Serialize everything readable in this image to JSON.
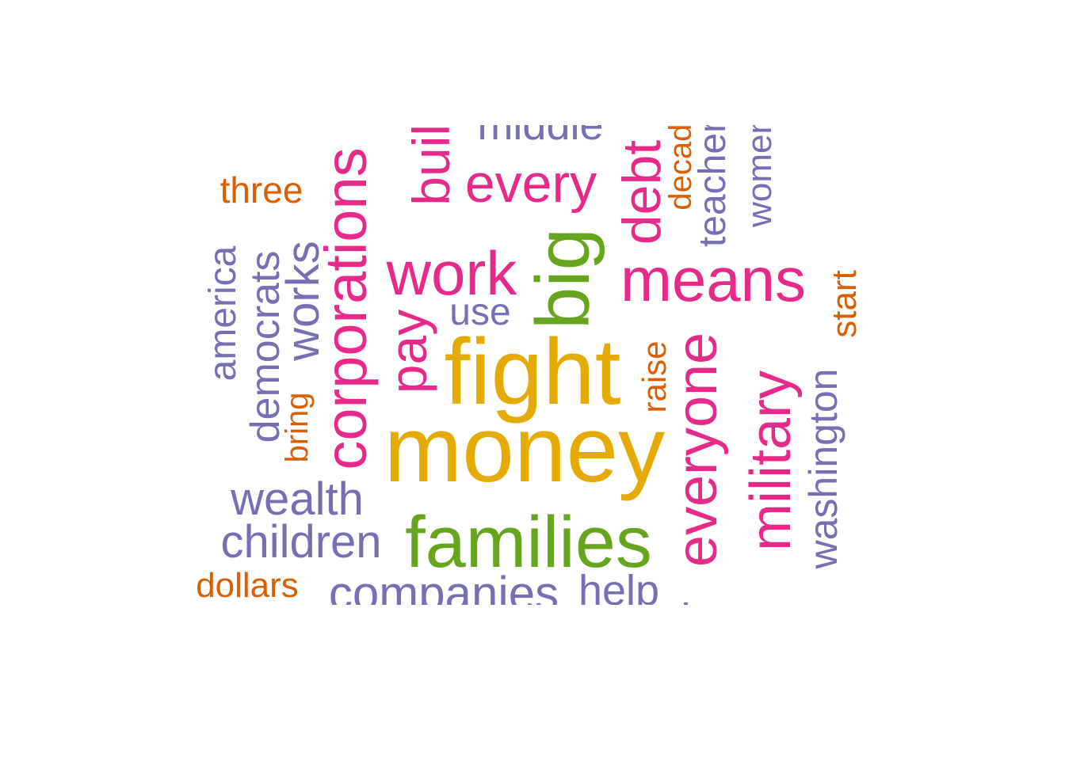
{
  "colors": {
    "pink": "#E7298A",
    "gold": "#E6AB02",
    "green": "#66A61E",
    "purple": "#7570B3",
    "orange": "#D95F02"
  },
  "words": [
    {
      "text": "fight",
      "color": "gold"
    },
    {
      "text": "money",
      "color": "gold"
    },
    {
      "text": "families",
      "color": "green"
    },
    {
      "text": "big",
      "color": "green"
    },
    {
      "text": "corporations",
      "color": "pink"
    },
    {
      "text": "work",
      "color": "pink"
    },
    {
      "text": "means",
      "color": "pink"
    },
    {
      "text": "everyone",
      "color": "pink"
    },
    {
      "text": "military",
      "color": "pink"
    },
    {
      "text": "every",
      "color": "pink"
    },
    {
      "text": "debt",
      "color": "pink"
    },
    {
      "text": "pay",
      "color": "pink"
    },
    {
      "text": "build",
      "color": "pink"
    },
    {
      "text": "companies",
      "color": "purple"
    },
    {
      "text": "children",
      "color": "purple"
    },
    {
      "text": "wealth",
      "color": "purple"
    },
    {
      "text": "help",
      "color": "purple"
    },
    {
      "text": "works",
      "color": "purple"
    },
    {
      "text": "democrats",
      "color": "purple"
    },
    {
      "text": "america",
      "color": "purple"
    },
    {
      "text": "use",
      "color": "purple"
    },
    {
      "text": "middle",
      "color": "purple"
    },
    {
      "text": "teachers",
      "color": "purple"
    },
    {
      "text": "women",
      "color": "purple"
    },
    {
      "text": "washington",
      "color": "purple"
    },
    {
      "text": "keep",
      "color": "purple"
    },
    {
      "text": "three",
      "color": "orange"
    },
    {
      "text": "dollars",
      "color": "orange"
    },
    {
      "text": "bring",
      "color": "orange"
    },
    {
      "text": "raise",
      "color": "orange"
    },
    {
      "text": "decades",
      "color": "orange"
    },
    {
      "text": "start",
      "color": "orange"
    }
  ]
}
